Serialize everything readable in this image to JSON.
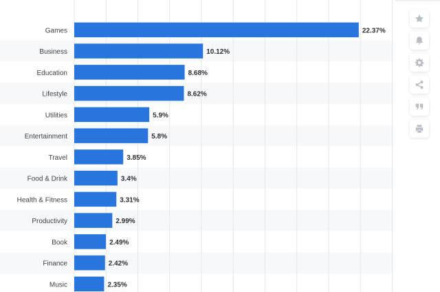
{
  "chart_data": {
    "type": "bar",
    "orientation": "horizontal",
    "categories": [
      "Games",
      "Business",
      "Education",
      "Lifestyle",
      "Utilities",
      "Entertainment",
      "Travel",
      "Food & Drink",
      "Health & Fitness",
      "Productivity",
      "Book",
      "Finance",
      "Music"
    ],
    "values": [
      22.37,
      10.12,
      8.68,
      8.62,
      5.9,
      5.8,
      3.85,
      3.4,
      3.31,
      2.99,
      2.49,
      2.42,
      2.35
    ],
    "value_labels": [
      "22.37%",
      "10.12%",
      "8.68%",
      "8.62%",
      "5.9%",
      "5.8%",
      "3.85%",
      "3.4%",
      "3.31%",
      "2.99%",
      "2.49%",
      "2.42%",
      "2.35%"
    ],
    "xlim": [
      0,
      25
    ],
    "grid": true,
    "bar_color": "#2876dd",
    "stripe_color": "#f7f8fa"
  },
  "sidebar": {
    "icons": [
      "star-icon",
      "bell-icon",
      "gear-icon",
      "share-icon",
      "quote-icon",
      "print-icon"
    ]
  }
}
